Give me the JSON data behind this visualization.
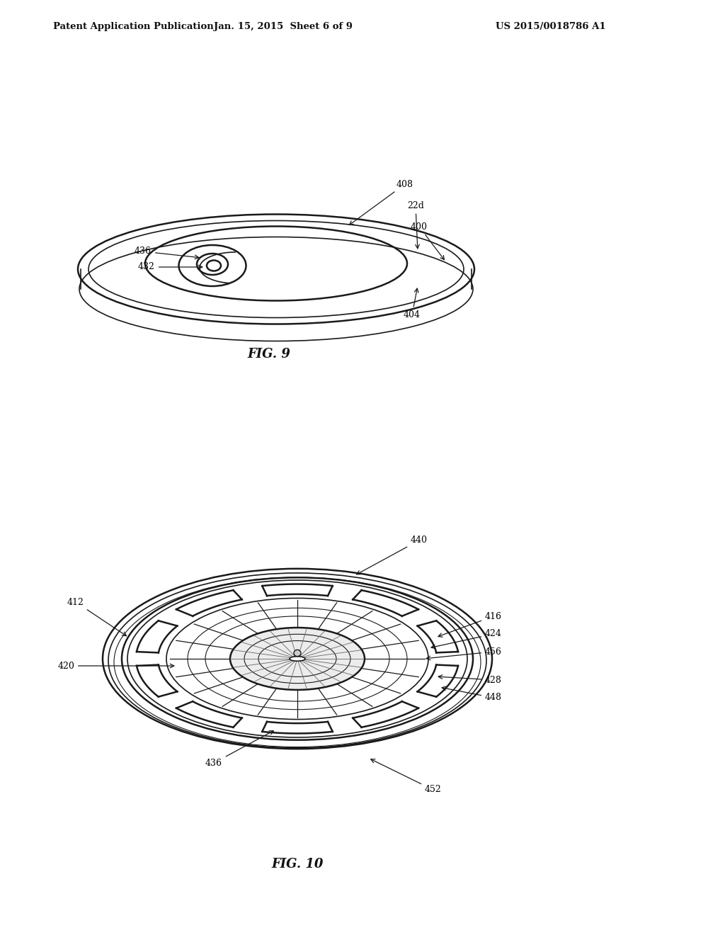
{
  "bg_color": "#ffffff",
  "line_color": "#1a1a1a",
  "header_left": "Patent Application Publication",
  "header_center": "Jan. 15, 2015  Sheet 6 of 9",
  "header_right": "US 2015/0018786 A1",
  "fig9_label": "FIG. 9",
  "fig10_label": "FIG. 10"
}
